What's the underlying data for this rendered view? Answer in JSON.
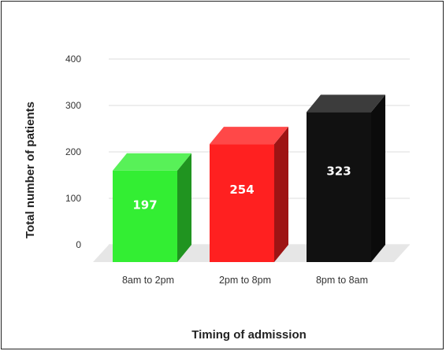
{
  "chart_data": {
    "type": "bar",
    "categories": [
      "8am to 2pm",
      "2pm to 8pm",
      "8pm to 8am"
    ],
    "values": [
      197,
      254,
      323
    ],
    "data_labels": [
      "197",
      "254",
      "323"
    ],
    "colors": [
      "#33ee33",
      "#ff2020",
      "#111111"
    ],
    "xlabel": "Timing of admission",
    "ylabel": "Total number of patients",
    "ylim": [
      0,
      400
    ],
    "yticks": [
      "0",
      "100",
      "200",
      "300",
      "400"
    ],
    "grid": true,
    "style": "3d"
  }
}
